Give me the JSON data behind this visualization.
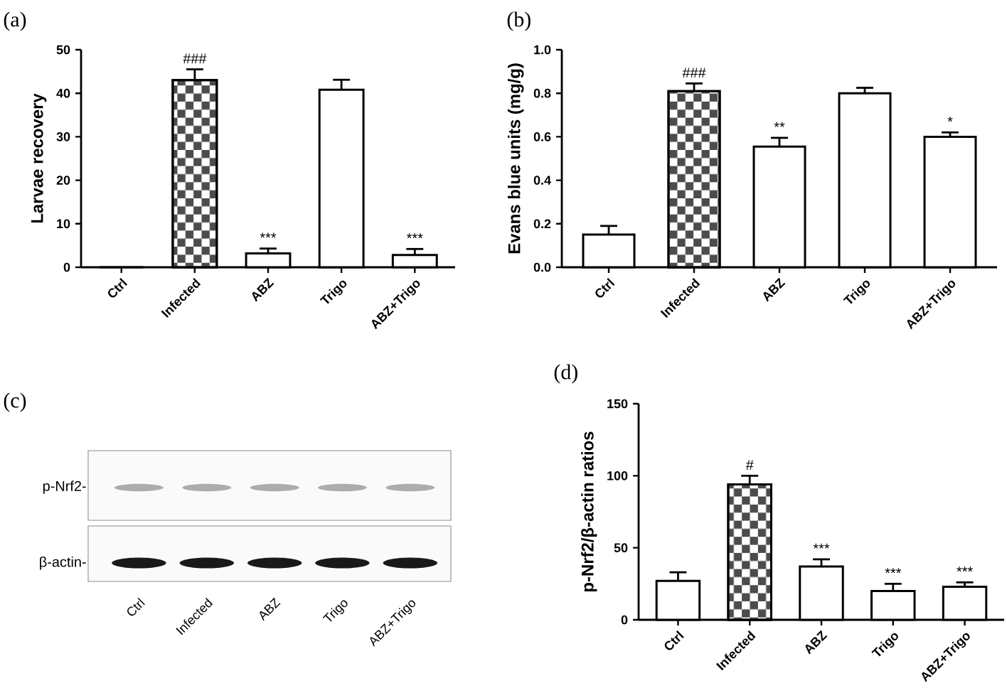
{
  "chart_data": [
    {
      "type": "bar",
      "title": "(a)",
      "ylabel": "Larvae recovery",
      "categories": [
        "Ctrl",
        "Infected",
        "ABZ",
        "Trigo",
        "ABZ+Trigo"
      ],
      "values": [
        0,
        43,
        3.2,
        40.8,
        2.8
      ],
      "errors": [
        null,
        2.5,
        1.1,
        2.3,
        1.4
      ],
      "color": "#000000",
      "ylim": [
        0,
        50
      ],
      "yticks": [
        0,
        10,
        20,
        30,
        40,
        50
      ],
      "annotations": [
        {
          "text": "###",
          "x": "Infected",
          "y": 45.5
        },
        {
          "text": "***",
          "x": "ABZ",
          "y": 4.3
        },
        {
          "text": "***",
          "x": "ABZ+Trigo",
          "y": 4.2
        }
      ]
    },
    {
      "type": "bar",
      "title": "(b)",
      "ylabel": "Evans blue units (mg/g)",
      "categories": [
        "Ctrl",
        "Infected",
        "ABZ",
        "Trigo",
        "ABZ+Trigo"
      ],
      "values": [
        0.15,
        0.81,
        0.555,
        0.8,
        0.6
      ],
      "errors": [
        0.04,
        0.035,
        0.04,
        0.025,
        0.02
      ],
      "color": "#000000",
      "ylim": [
        0,
        1
      ],
      "yticks": [
        {
          "value": 0,
          "label": "0.0"
        },
        0.2,
        0.4,
        0.6,
        0.8,
        {
          "value": 1,
          "label": "1.0"
        }
      ],
      "annotations": [
        {
          "text": "###",
          "x": "Infected",
          "y": 0.845
        },
        {
          "text": "**",
          "x": "ABZ",
          "y": 0.595
        },
        {
          "text": "*",
          "x": "ABZ+Trigo",
          "y": 0.62
        }
      ]
    },
    {
      "type": "other",
      "title": "(c)",
      "categories": [
        "Ctrl",
        "Infected",
        "ABZ",
        "Trigo",
        "ABZ+Trigo"
      ],
      "annotations": [
        "p-Nrf2-",
        "β-actin-"
      ]
    },
    {
      "type": "bar",
      "title": "(d)",
      "ylabel": "p-Nrf2/β-actin ratios",
      "categories": [
        "Ctrl",
        "Infected",
        "ABZ",
        "Trigo",
        "ABZ+Trigo"
      ],
      "values": [
        27,
        94,
        37,
        20,
        23
      ],
      "errors": [
        6,
        6,
        5,
        5,
        3
      ],
      "color": "#000000",
      "ylim": [
        0,
        150
      ],
      "yticks": [
        0,
        50,
        100,
        150
      ],
      "annotations": [
        {
          "text": "#",
          "x": "Infected",
          "y": 100
        },
        {
          "text": "***",
          "x": "ABZ",
          "y": 42
        },
        {
          "text": "***",
          "x": "Trigo",
          "y": 25
        },
        {
          "text": "***",
          "x": "ABZ+Trigo",
          "y": 26
        }
      ]
    }
  ]
}
